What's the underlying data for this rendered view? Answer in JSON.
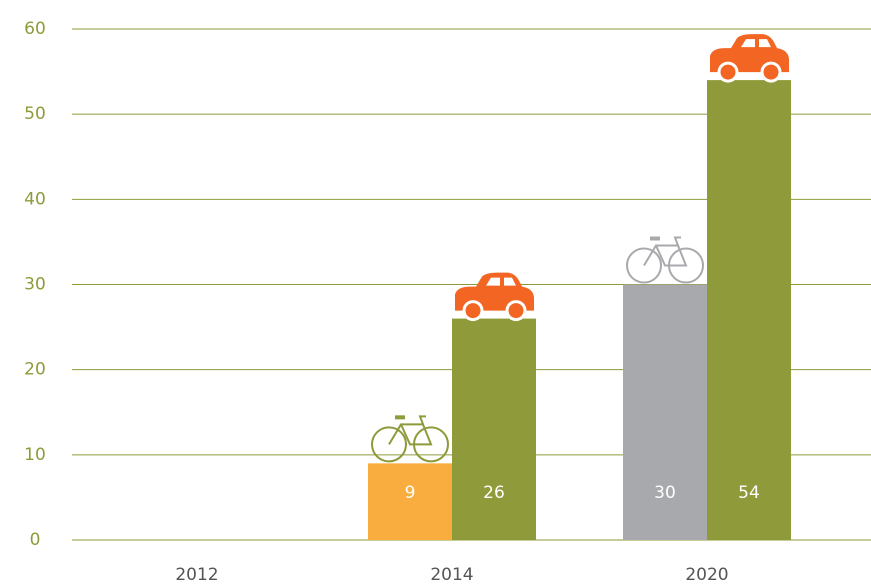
{
  "chart_data": {
    "type": "bar",
    "categories": [
      "2012",
      "2014",
      "2020"
    ],
    "series": [
      {
        "values": [
          null,
          9,
          30
        ],
        "colors": [
          null,
          "#f9ad3f",
          "#a8a9ad"
        ],
        "icon": "bicycle",
        "icon_colors": [
          null,
          "#8f9a3a",
          "#a8a9ad"
        ]
      },
      {
        "values": [
          null,
          26,
          54
        ],
        "colors": [
          null,
          "#8f9a3a",
          "#8f9a3a"
        ],
        "icon": "car",
        "icon_colors": [
          null,
          "#f26522",
          "#f26522"
        ]
      }
    ],
    "ylim": [
      0,
      60
    ],
    "yticks": [
      0,
      10,
      20,
      30,
      40,
      50,
      60
    ],
    "grid": true,
    "grid_color": "#8f9a3a",
    "tick_label_color": "#8f9a3a"
  }
}
